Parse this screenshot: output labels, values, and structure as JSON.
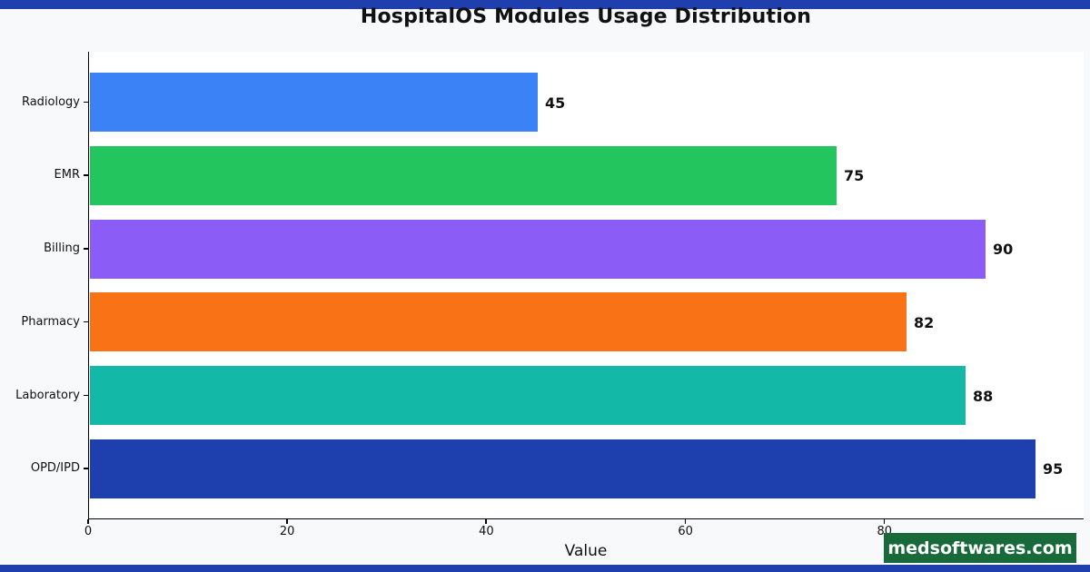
{
  "page": {
    "watermark": "medsoftwares.com",
    "colors": {
      "strip": "#1f3fae",
      "page_bg": "#f8f9fb",
      "plot_bg": "#ffffff",
      "badge_bg": "#196a3b",
      "text": "#111111",
      "axis": "#000000"
    }
  },
  "chart_data": {
    "type": "bar",
    "orientation": "horizontal",
    "title": "HospitalOS Modules Usage Distribution",
    "categories": [
      "Radiology",
      "EMR",
      "Billing",
      "Pharmacy",
      "Laboratory",
      "OPD/IPD"
    ],
    "values": [
      45,
      75,
      90,
      82,
      88,
      95
    ],
    "bar_colors": [
      "#3b82f6",
      "#22c55e",
      "#8b5cf6",
      "#f97316",
      "#14b8a6",
      "#1e40af"
    ],
    "value_labels": [
      "45",
      "75",
      "90",
      "82",
      "88",
      "95"
    ],
    "xlabel": "Value",
    "ylabel": "",
    "xlim": [
      0,
      100
    ],
    "xticks": [
      0,
      20,
      40,
      60,
      80
    ],
    "grid": false,
    "legend": "none",
    "value_labels_shown": true
  }
}
